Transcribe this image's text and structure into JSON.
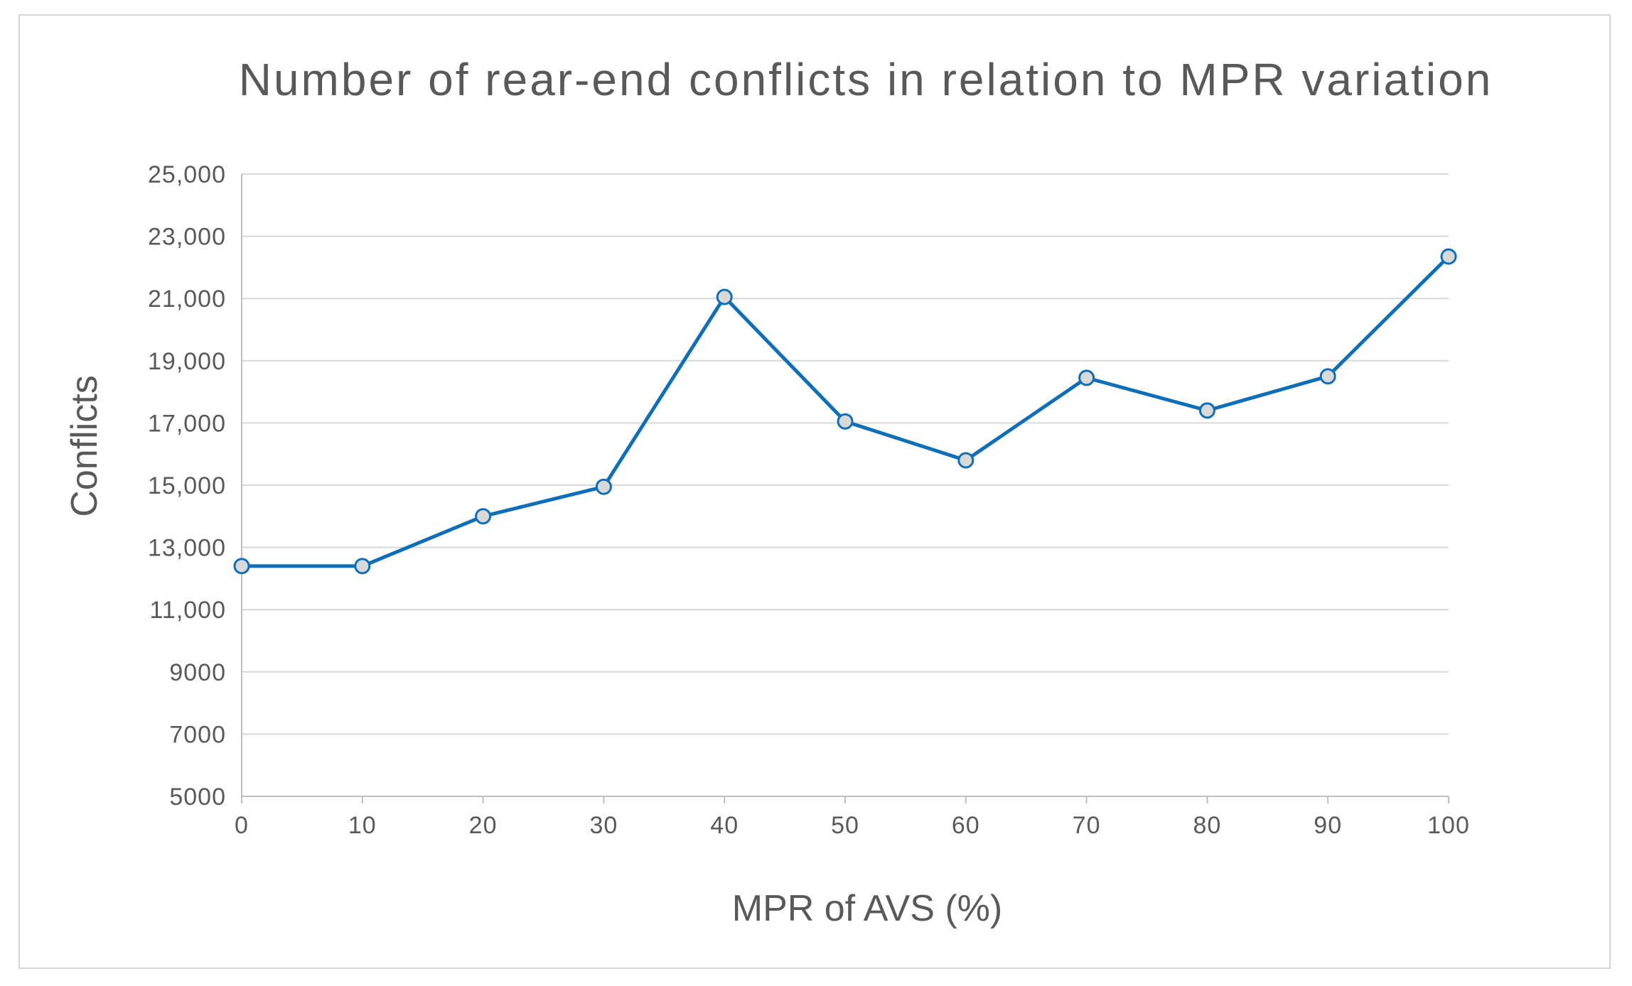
{
  "chart_data": {
    "type": "line",
    "title": "Number of rear-end conflicts in relation to MPR variation",
    "xlabel": "MPR of AVS (%)",
    "ylabel": "Conflicts",
    "x": [
      0,
      10,
      20,
      30,
      40,
      50,
      60,
      70,
      80,
      90,
      100
    ],
    "x_tick_labels": [
      "0",
      "10",
      "20",
      "30",
      "40",
      "50",
      "60",
      "70",
      "80",
      "90",
      "100"
    ],
    "y_ticks": [
      5000,
      7000,
      9000,
      11000,
      13000,
      15000,
      17000,
      19000,
      21000,
      23000,
      25000
    ],
    "y_tick_labels": [
      "5000",
      "7000",
      "9000",
      "11,000",
      "13,000",
      "15,000",
      "17,000",
      "19,000",
      "21,000",
      "23,000",
      "25,000"
    ],
    "ylim": [
      5000,
      25000
    ],
    "xlim": [
      0,
      100
    ],
    "grid": true,
    "legend": "none",
    "series": [
      {
        "name": "Conflicts",
        "values": [
          12400,
          12400,
          14000,
          14950,
          21050,
          17050,
          15800,
          18450,
          17400,
          18500,
          22350
        ],
        "color": "#0e6eb8",
        "marker_fill": "#d9d9d9"
      }
    ],
    "colors": {
      "line": "#0e6eb8",
      "marker_fill": "#d9d9d9",
      "grid": "#d9d9d9",
      "axis": "#bfbfbf",
      "text": "#595959"
    }
  }
}
